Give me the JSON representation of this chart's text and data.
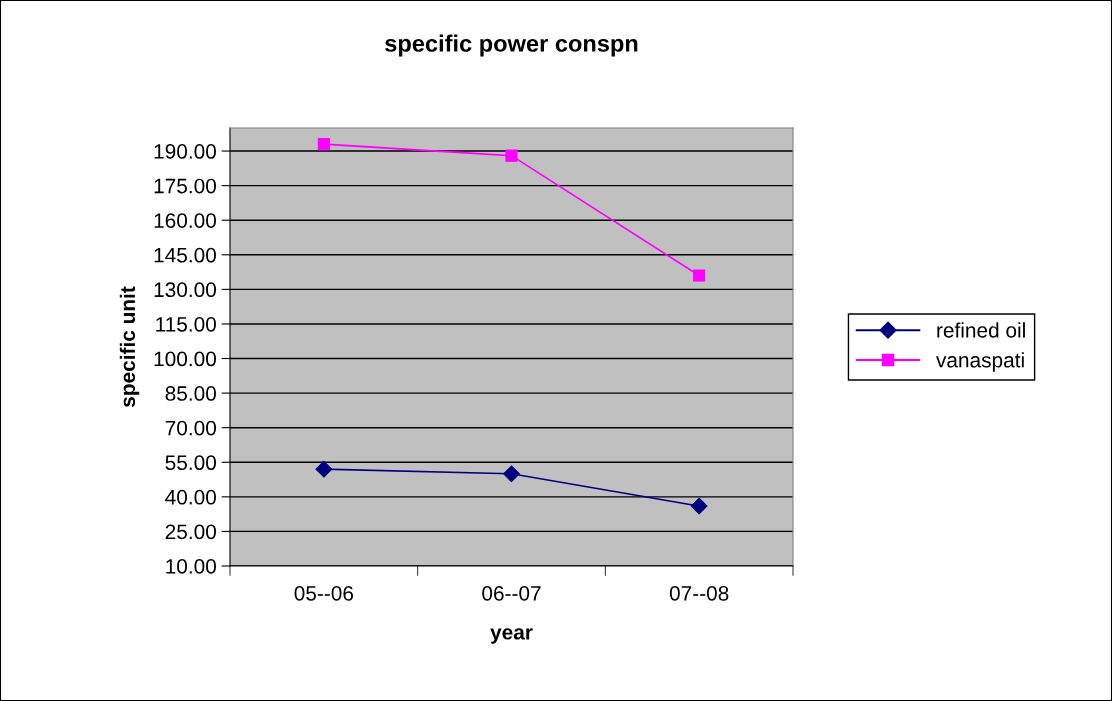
{
  "chart_data": {
    "type": "line",
    "title": "specific power conspn",
    "xlabel": "year",
    "ylabel": "specific unit",
    "categories": [
      "05--06",
      "06--07",
      "07--08"
    ],
    "series": [
      {
        "name": "refined oil",
        "color": "#000080",
        "marker": "diamond",
        "values": [
          52,
          50,
          36
        ]
      },
      {
        "name": "vanaspati",
        "color": "#ff00ff",
        "marker": "square",
        "values": [
          193,
          188,
          136
        ]
      }
    ],
    "ylim": [
      10,
      200
    ],
    "yticks": [
      {
        "value": 10,
        "label": "10.00"
      },
      {
        "value": 25,
        "label": "25.00"
      },
      {
        "value": 40,
        "label": "40.00"
      },
      {
        "value": 55,
        "label": "55.00"
      },
      {
        "value": 70,
        "label": "70.00"
      },
      {
        "value": 85,
        "label": "85.00"
      },
      {
        "value": 100,
        "label": "100.00"
      },
      {
        "value": 115,
        "label": "115.00"
      },
      {
        "value": 130,
        "label": "130.00"
      },
      {
        "value": 145,
        "label": "145.00"
      },
      {
        "value": 160,
        "label": "160.00"
      },
      {
        "value": 175,
        "label": "175.00"
      },
      {
        "value": 190,
        "label": "190.00"
      }
    ],
    "grid": "y",
    "legend": "right"
  }
}
